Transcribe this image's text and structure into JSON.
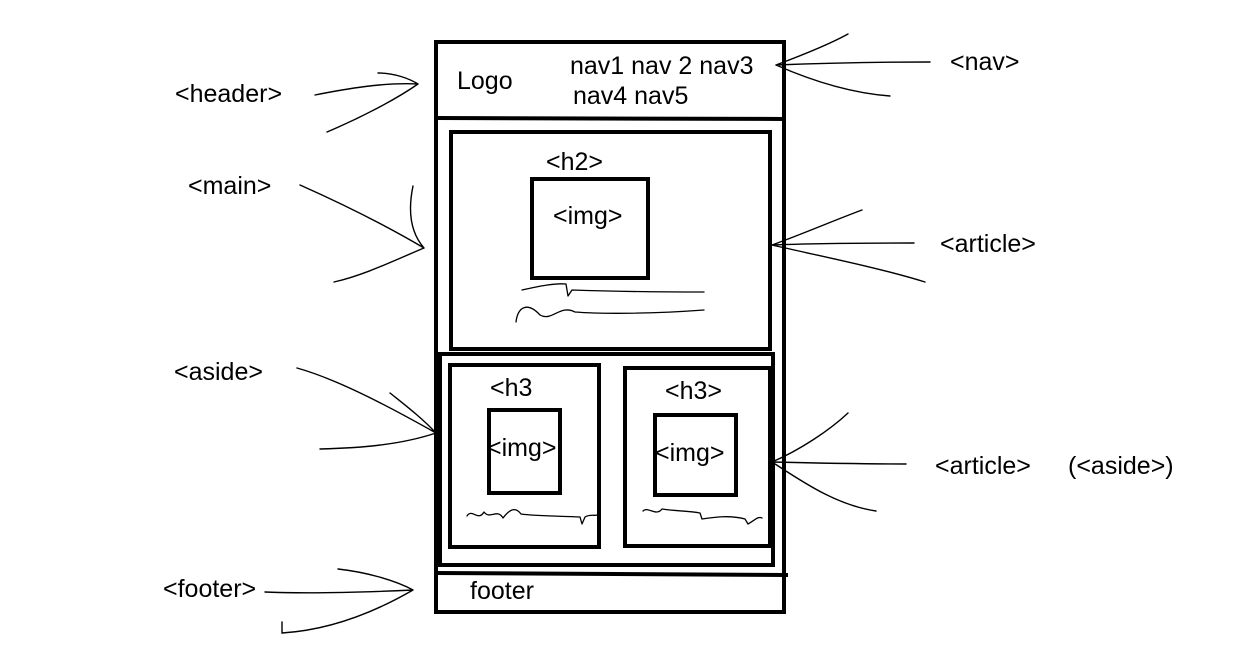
{
  "layout": {
    "header": {
      "logo_text": "Logo",
      "nav_line1": "nav1 nav 2 nav3",
      "nav_line2": "nav4 nav5"
    },
    "main_article": {
      "heading_text": "<h2>",
      "image_text": "<img>"
    },
    "side_articles": [
      {
        "heading_text": "<h3",
        "image_text": "<img>"
      },
      {
        "heading_text": "<h3>",
        "image_text": "<img>"
      }
    ],
    "footer": {
      "text": "footer"
    }
  },
  "callouts": {
    "header": "<header>",
    "main": "<main>",
    "aside": "<aside>",
    "footer": "<footer>",
    "nav": "<nav>",
    "article": "<article>",
    "side_article": "<article>",
    "side_article_note": "(<aside>)"
  }
}
